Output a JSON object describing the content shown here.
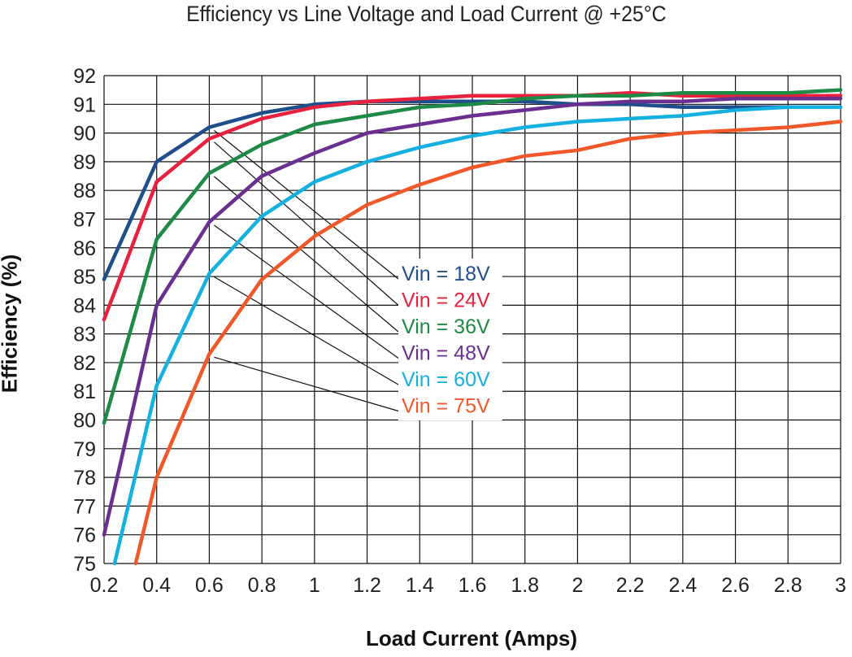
{
  "chart_data": {
    "type": "line",
    "title": "Efficiency vs Line Voltage and Load Current @ +25°C",
    "xlabel": "Load Current (Amps)",
    "ylabel": "Efficiency (%)",
    "xlim": [
      0.2,
      3.0
    ],
    "ylim": [
      75,
      92
    ],
    "x_ticks": [
      "0.2",
      "0.4",
      "0.6",
      "0.8",
      "1",
      "1.2",
      "1.4",
      "1.6",
      "1.8",
      "2",
      "2.2",
      "2.4",
      "2.6",
      "2.8",
      "3"
    ],
    "y_ticks": [
      "75",
      "76",
      "77",
      "78",
      "79",
      "80",
      "81",
      "82",
      "83",
      "84",
      "85",
      "86",
      "87",
      "88",
      "89",
      "90",
      "91",
      "92"
    ],
    "grid": true,
    "legend_position": "center-right",
    "series": [
      {
        "name": "Vin = 18V",
        "color": "#1f4e8c",
        "points": [
          [
            0.2,
            84.9
          ],
          [
            0.4,
            89.0
          ],
          [
            0.6,
            90.2
          ],
          [
            0.8,
            90.7
          ],
          [
            1.0,
            91.0
          ],
          [
            1.2,
            91.1
          ],
          [
            1.4,
            91.1
          ],
          [
            1.6,
            91.1
          ],
          [
            1.8,
            91.1
          ],
          [
            2.0,
            91.0
          ],
          [
            2.2,
            91.0
          ],
          [
            2.4,
            90.9
          ],
          [
            2.6,
            90.9
          ],
          [
            2.8,
            90.9
          ],
          [
            3.0,
            90.9
          ]
        ]
      },
      {
        "name": "Vin = 24V",
        "color": "#e8213f",
        "points": [
          [
            0.2,
            83.5
          ],
          [
            0.4,
            88.3
          ],
          [
            0.6,
            89.8
          ],
          [
            0.8,
            90.5
          ],
          [
            1.0,
            90.9
          ],
          [
            1.2,
            91.1
          ],
          [
            1.4,
            91.2
          ],
          [
            1.6,
            91.3
          ],
          [
            1.8,
            91.3
          ],
          [
            2.0,
            91.3
          ],
          [
            2.2,
            91.4
          ],
          [
            2.4,
            91.3
          ],
          [
            2.6,
            91.3
          ],
          [
            2.8,
            91.3
          ],
          [
            3.0,
            91.3
          ]
        ]
      },
      {
        "name": "Vin = 36V",
        "color": "#1d8a45",
        "points": [
          [
            0.2,
            79.9
          ],
          [
            0.4,
            86.3
          ],
          [
            0.6,
            88.6
          ],
          [
            0.8,
            89.6
          ],
          [
            1.0,
            90.3
          ],
          [
            1.2,
            90.6
          ],
          [
            1.4,
            90.9
          ],
          [
            1.6,
            91.0
          ],
          [
            1.8,
            91.2
          ],
          [
            2.0,
            91.3
          ],
          [
            2.2,
            91.3
          ],
          [
            2.4,
            91.4
          ],
          [
            2.6,
            91.4
          ],
          [
            2.8,
            91.4
          ],
          [
            3.0,
            91.5
          ]
        ]
      },
      {
        "name": "Vin = 48V",
        "color": "#6a2f8f",
        "points": [
          [
            0.2,
            76.0
          ],
          [
            0.4,
            84.0
          ],
          [
            0.6,
            86.9
          ],
          [
            0.8,
            88.5
          ],
          [
            1.0,
            89.3
          ],
          [
            1.2,
            90.0
          ],
          [
            1.4,
            90.3
          ],
          [
            1.6,
            90.6
          ],
          [
            1.8,
            90.8
          ],
          [
            2.0,
            91.0
          ],
          [
            2.2,
            91.1
          ],
          [
            2.4,
            91.1
          ],
          [
            2.6,
            91.2
          ],
          [
            2.8,
            91.2
          ],
          [
            3.0,
            91.2
          ]
        ]
      },
      {
        "name": "Vin = 60V",
        "color": "#14b0e0",
        "points": [
          [
            0.24,
            75.0
          ],
          [
            0.4,
            81.2
          ],
          [
            0.6,
            85.1
          ],
          [
            0.8,
            87.1
          ],
          [
            1.0,
            88.3
          ],
          [
            1.2,
            89.0
          ],
          [
            1.4,
            89.5
          ],
          [
            1.6,
            89.9
          ],
          [
            1.8,
            90.2
          ],
          [
            2.0,
            90.4
          ],
          [
            2.2,
            90.5
          ],
          [
            2.4,
            90.6
          ],
          [
            2.6,
            90.8
          ],
          [
            2.8,
            90.9
          ],
          [
            3.0,
            90.9
          ]
        ]
      },
      {
        "name": "Vin = 75V",
        "color": "#f0582a",
        "points": [
          [
            0.32,
            75.0
          ],
          [
            0.4,
            78.0
          ],
          [
            0.6,
            82.3
          ],
          [
            0.8,
            84.9
          ],
          [
            1.0,
            86.4
          ],
          [
            1.2,
            87.5
          ],
          [
            1.4,
            88.2
          ],
          [
            1.6,
            88.8
          ],
          [
            1.8,
            89.2
          ],
          [
            2.0,
            89.4
          ],
          [
            2.2,
            89.8
          ],
          [
            2.4,
            90.0
          ],
          [
            2.6,
            90.1
          ],
          [
            2.8,
            90.2
          ],
          [
            3.0,
            90.4
          ]
        ]
      }
    ]
  }
}
